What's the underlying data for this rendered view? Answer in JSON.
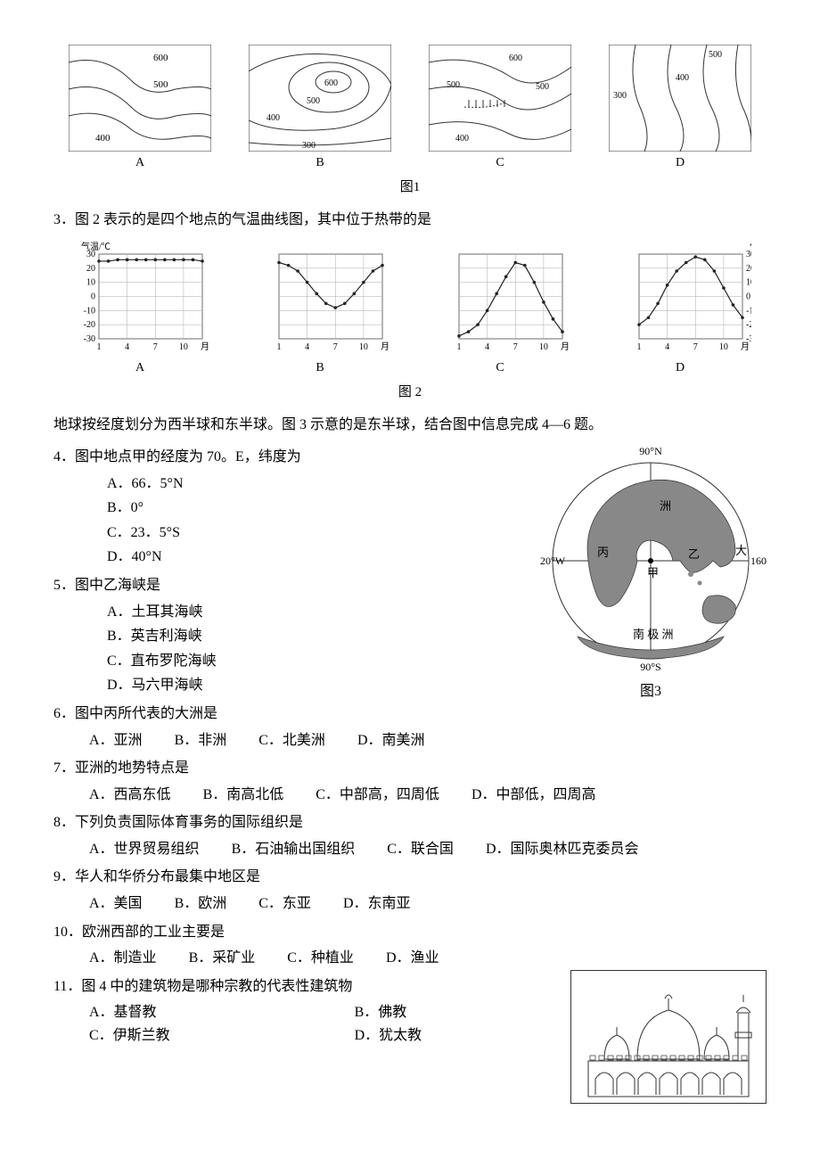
{
  "fig1": {
    "caption": "图1",
    "panels": [
      "A",
      "B",
      "C",
      "D"
    ],
    "contour_labels": {
      "A": [
        "600",
        "500",
        "400"
      ],
      "B": [
        "600",
        "500",
        "400",
        "300"
      ],
      "C": [
        "600",
        "500",
        "500",
        "400"
      ],
      "D": [
        "500",
        "400",
        "300"
      ]
    },
    "stroke": "#333333",
    "bg": "#ffffff"
  },
  "q3": {
    "text": "3．图 2 表示的是四个地点的气温曲线图，其中位于热带的是",
    "fig_caption": "图 2",
    "panels": [
      "A",
      "B",
      "C",
      "D"
    ],
    "y_label_left": "气温/℃",
    "y_label_right": "气温/℃",
    "y_ticks": [
      -30,
      -20,
      -10,
      0,
      10,
      20,
      30
    ],
    "x_ticks": [
      "1",
      "4",
      "7",
      "10",
      "月"
    ],
    "series": {
      "A": [
        25,
        25,
        26,
        26,
        26,
        26,
        26,
        26,
        26,
        26,
        26,
        25
      ],
      "B": [
        24,
        22,
        18,
        10,
        2,
        -5,
        -8,
        -5,
        2,
        10,
        18,
        22
      ],
      "C": [
        -28,
        -25,
        -20,
        -10,
        2,
        14,
        24,
        22,
        10,
        -4,
        -16,
        -25
      ],
      "D": [
        -20,
        -15,
        -5,
        8,
        18,
        24,
        28,
        26,
        18,
        6,
        -6,
        -15
      ]
    },
    "chart": {
      "stroke": "#333333",
      "grid": "#aaaaaa",
      "line": "#222222",
      "bg": "#ffffff"
    }
  },
  "intro_456": "地球按经度划分为西半球和东半球。图 3 示意的是东半球，结合图中信息完成 4—6 题。",
  "q4": {
    "text": "4．图中地点甲的经度为 70。E，纬度为",
    "opts": [
      "A．66．5°N",
      "B．0°",
      "C．23．5°S",
      "D．40°N"
    ]
  },
  "q5": {
    "text": "5．图中乙海峡是",
    "opts": [
      "A．土耳其海峡",
      "B．英吉利海峡",
      "C．直布罗陀海峡",
      "D．马六甲海峡"
    ]
  },
  "q6": {
    "text": "6．图中丙所代表的大洲是",
    "opts": [
      "A．亚洲",
      "B．非洲",
      "C．北美洲",
      "D．南美洲"
    ]
  },
  "fig3": {
    "caption": "图3",
    "labels": {
      "north": "90°N",
      "south": "90°S",
      "west": "20°W",
      "east": "160°E",
      "antarctica": "南 极 洲",
      "asia": "洲",
      "africa": "丙",
      "ocean": "大",
      "jia": "甲",
      "yi": "乙"
    },
    "stroke": "#333333",
    "land": "#888888"
  },
  "q7": {
    "text": "7．亚洲的地势特点是",
    "opts": [
      "A．西高东低",
      "B．南高北低",
      "C．中部高，四周低",
      "D．中部低，四周高"
    ]
  },
  "q8": {
    "text": "8．下列负责国际体育事务的国际组织是",
    "opts": [
      "A．世界贸易组织",
      "B．石油输出国组织",
      "C．联合国",
      "D．国际奥林匹克委员会"
    ]
  },
  "q9": {
    "text": "9．华人和华侨分布最集中地区是",
    "opts": [
      "A．美国",
      "B．欧洲",
      "C．东亚",
      "D．东南亚"
    ]
  },
  "q10": {
    "text": "10．欧洲西部的工业主要是",
    "opts": [
      "A．制造业",
      "B．采矿业",
      "C．种植业",
      "D．渔业"
    ]
  },
  "q11": {
    "text": "11．图 4 中的建筑物是哪种宗教的代表性建筑物",
    "opts": [
      "A．基督教",
      "B．佛教",
      "C．伊斯兰教",
      "D．犹太教"
    ]
  },
  "fig4": {
    "stroke": "#333333",
    "bg": "#ffffff"
  }
}
